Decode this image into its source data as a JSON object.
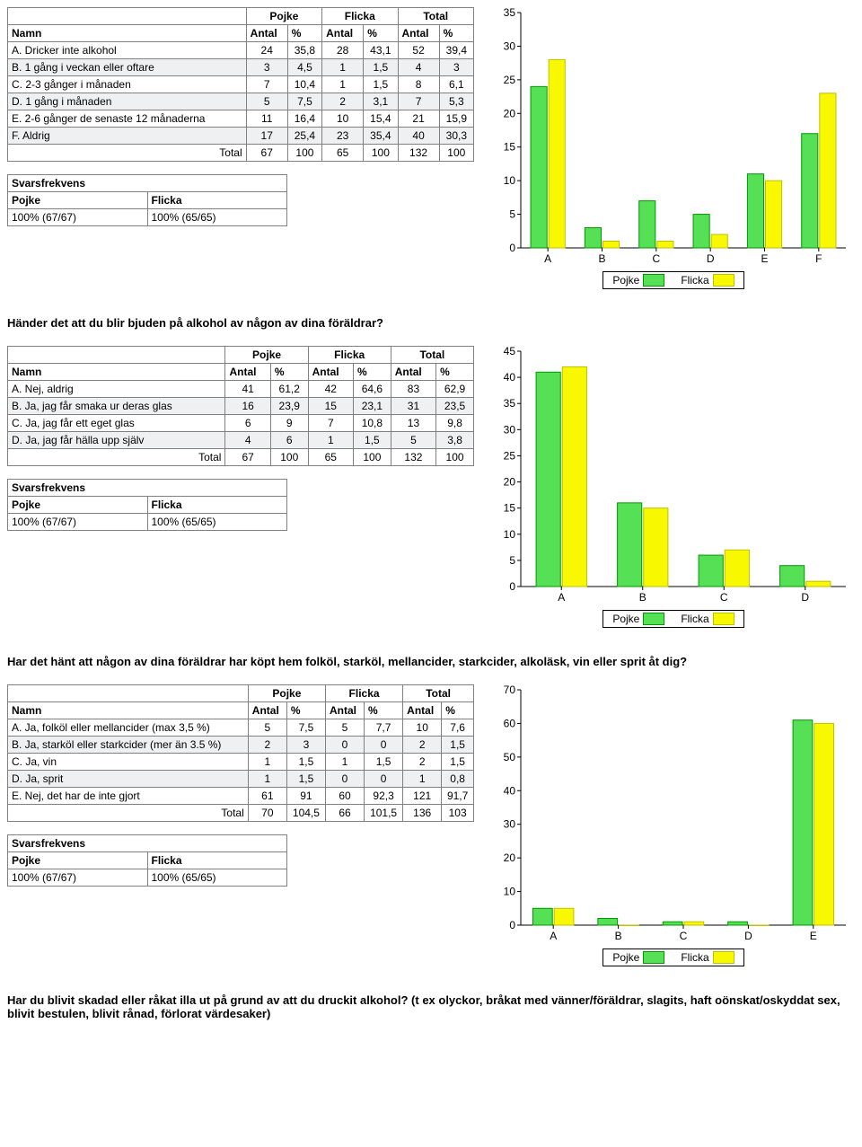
{
  "colors": {
    "pojke_fill": "#55e055",
    "pojke_stroke": "#009900",
    "flicka_fill": "#f8f800",
    "flicka_stroke": "#c0c000",
    "axis": "#000000",
    "grid": "#000000",
    "bg": "#ffffff"
  },
  "legend": {
    "pojke": "Pojke",
    "flicka": "Flicka"
  },
  "table_headers": {
    "namn": "Namn",
    "pojke": "Pojke",
    "flicka": "Flicka",
    "total": "Total",
    "antal": "Antal",
    "pct": "%",
    "total_label": "Total"
  },
  "freq": {
    "title": "Svarsfrekvens",
    "pojke_label": "Pojke",
    "flicka_label": "Flicka",
    "pojke_value": "100% (67/67)",
    "flicka_value": "100% (65/65)"
  },
  "sections": [
    {
      "ymax": 35,
      "ystep": 5,
      "categories": [
        "A",
        "B",
        "C",
        "D",
        "E",
        "F"
      ],
      "rows": [
        {
          "name": "A. Dricker inte alkohol",
          "p_antal": "24",
          "p_pct": "35,8",
          "f_antal": "28",
          "f_pct": "43,1",
          "t_antal": "52",
          "t_pct": "39,4",
          "pv": 24,
          "fv": 28
        },
        {
          "name": "B. 1 gång i veckan eller oftare",
          "p_antal": "3",
          "p_pct": "4,5",
          "f_antal": "1",
          "f_pct": "1,5",
          "t_antal": "4",
          "t_pct": "3",
          "pv": 3,
          "fv": 1
        },
        {
          "name": "C. 2-3 gånger i månaden",
          "p_antal": "7",
          "p_pct": "10,4",
          "f_antal": "1",
          "f_pct": "1,5",
          "t_antal": "8",
          "t_pct": "6,1",
          "pv": 7,
          "fv": 1
        },
        {
          "name": "D. 1 gång i månaden",
          "p_antal": "5",
          "p_pct": "7,5",
          "f_antal": "2",
          "f_pct": "3,1",
          "t_antal": "7",
          "t_pct": "5,3",
          "pv": 5,
          "fv": 2
        },
        {
          "name": "E. 2-6 gånger de senaste 12 månaderna",
          "p_antal": "11",
          "p_pct": "16,4",
          "f_antal": "10",
          "f_pct": "15,4",
          "t_antal": "21",
          "t_pct": "15,9",
          "pv": 11,
          "fv": 10
        },
        {
          "name": "F. Aldrig",
          "p_antal": "17",
          "p_pct": "25,4",
          "f_antal": "23",
          "f_pct": "35,4",
          "t_antal": "40",
          "t_pct": "30,3",
          "pv": 17,
          "fv": 23
        }
      ],
      "totals": {
        "p_antal": "67",
        "p_pct": "100",
        "f_antal": "65",
        "f_pct": "100",
        "t_antal": "132",
        "t_pct": "100"
      },
      "question_after": "Händer det att du blir bjuden på alkohol av någon av dina föräldrar?"
    },
    {
      "ymax": 45,
      "ystep": 5,
      "categories": [
        "A",
        "B",
        "C",
        "D"
      ],
      "rows": [
        {
          "name": "A. Nej, aldrig",
          "p_antal": "41",
          "p_pct": "61,2",
          "f_antal": "42",
          "f_pct": "64,6",
          "t_antal": "83",
          "t_pct": "62,9",
          "pv": 41,
          "fv": 42
        },
        {
          "name": "B. Ja, jag får smaka ur deras glas",
          "p_antal": "16",
          "p_pct": "23,9",
          "f_antal": "15",
          "f_pct": "23,1",
          "t_antal": "31",
          "t_pct": "23,5",
          "pv": 16,
          "fv": 15
        },
        {
          "name": "C. Ja, jag får ett eget glas",
          "p_antal": "6",
          "p_pct": "9",
          "f_antal": "7",
          "f_pct": "10,8",
          "t_antal": "13",
          "t_pct": "9,8",
          "pv": 6,
          "fv": 7
        },
        {
          "name": "D. Ja, jag får hälla upp själv",
          "p_antal": "4",
          "p_pct": "6",
          "f_antal": "1",
          "f_pct": "1,5",
          "t_antal": "5",
          "t_pct": "3,8",
          "pv": 4,
          "fv": 1
        }
      ],
      "totals": {
        "p_antal": "67",
        "p_pct": "100",
        "f_antal": "65",
        "f_pct": "100",
        "t_antal": "132",
        "t_pct": "100"
      },
      "question_after": "Har det hänt att någon av dina föräldrar har köpt hem folköl, starköl, mellancider, starkcider, alkoläsk, vin eller sprit åt dig?"
    },
    {
      "ymax": 70,
      "ystep": 10,
      "categories": [
        "A",
        "B",
        "C",
        "D",
        "E"
      ],
      "rows": [
        {
          "name": "A. Ja, folköl eller mellancider (max 3,5 %)",
          "p_antal": "5",
          "p_pct": "7,5",
          "f_antal": "5",
          "f_pct": "7,7",
          "t_antal": "10",
          "t_pct": "7,6",
          "pv": 5,
          "fv": 5
        },
        {
          "name": "B. Ja, starköl eller starkcider (mer än 3.5 %)",
          "p_antal": "2",
          "p_pct": "3",
          "f_antal": "0",
          "f_pct": "0",
          "t_antal": "2",
          "t_pct": "1,5",
          "pv": 2,
          "fv": 0
        },
        {
          "name": "C. Ja, vin",
          "p_antal": "1",
          "p_pct": "1,5",
          "f_antal": "1",
          "f_pct": "1,5",
          "t_antal": "2",
          "t_pct": "1,5",
          "pv": 1,
          "fv": 1
        },
        {
          "name": "D. Ja, sprit",
          "p_antal": "1",
          "p_pct": "1,5",
          "f_antal": "0",
          "f_pct": "0",
          "t_antal": "1",
          "t_pct": "0,8",
          "pv": 1,
          "fv": 0
        },
        {
          "name": "E. Nej, det har de inte gjort",
          "p_antal": "61",
          "p_pct": "91",
          "f_antal": "60",
          "f_pct": "92,3",
          "t_antal": "121",
          "t_pct": "91,7",
          "pv": 61,
          "fv": 60
        }
      ],
      "totals": {
        "p_antal": "70",
        "p_pct": "104,5",
        "f_antal": "66",
        "f_pct": "101,5",
        "t_antal": "136",
        "t_pct": "103"
      },
      "question_after": "Har du blivit skadad eller råkat illa ut på grund av att du druckit alkohol? (t ex olyckor, bråkat med vänner/föräldrar, slagits, haft oönskat/oskyddat sex, blivit bestulen, blivit rånad, förlorat värdesaker)"
    }
  ]
}
